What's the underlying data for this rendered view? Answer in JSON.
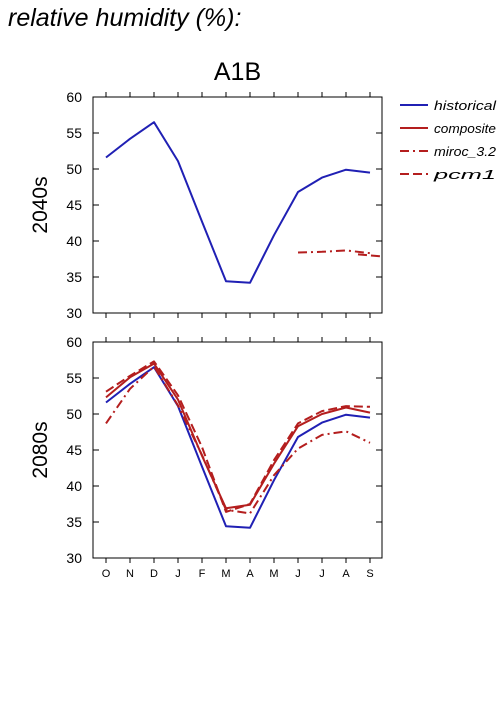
{
  "header": {
    "title": "relative humidity (%):"
  },
  "colors": {
    "historical": "#2020b4",
    "projection": "#b41e1e"
  },
  "chart_data": {
    "type": "line",
    "scenario": "A1B",
    "x": [
      "O",
      "N",
      "D",
      "J",
      "F",
      "M",
      "A",
      "M",
      "J",
      "J",
      "A",
      "S"
    ],
    "legend": {
      "placement": "right",
      "entries": [
        {
          "name": "historical",
          "color": "#2020b4",
          "dash": "solid"
        },
        {
          "name": "composite",
          "color": "#b41e1e",
          "dash": "solid"
        },
        {
          "name": "miroc_3.2",
          "color": "#b41e1e",
          "dash": "dash-dot"
        },
        {
          "name": "pcm1",
          "color": "#b41e1e",
          "dash": "dash"
        }
      ]
    },
    "panels": [
      {
        "label": "2040s",
        "ylim": [
          30,
          60
        ],
        "yticks": [
          30,
          35,
          40,
          45,
          50,
          55,
          60
        ],
        "grid": false,
        "series": [
          {
            "name": "historical",
            "values": [
              51.6,
              54.2,
              56.5,
              51.1,
              42.7,
              34.4,
              34.2,
              40.8,
              46.8,
              48.8,
              49.9,
              49.5
            ]
          },
          {
            "name": "miroc_3.2",
            "values": [
              null,
              null,
              null,
              null,
              null,
              null,
              null,
              null,
              38.4,
              38.5,
              38.7,
              38.3
            ]
          },
          {
            "name": "pcm1",
            "values": [
              null,
              null,
              null,
              null,
              null,
              null,
              null,
              null,
              null,
              null,
              null,
              38.0
            ]
          }
        ]
      },
      {
        "label": "2080s",
        "ylim": [
          30,
          60
        ],
        "yticks": [
          30,
          35,
          40,
          45,
          50,
          55,
          60
        ],
        "grid": false,
        "series": [
          {
            "name": "historical",
            "values": [
              51.6,
              54.2,
              56.5,
              51.1,
              42.7,
              34.4,
              34.2,
              40.8,
              46.8,
              48.8,
              49.9,
              49.5
            ]
          },
          {
            "name": "composite",
            "values": [
              52.3,
              55.1,
              57.0,
              52.0,
              44.2,
              36.9,
              37.4,
              43.1,
              48.3,
              50.0,
              50.9,
              50.2
            ]
          },
          {
            "name": "miroc_3.2",
            "values": [
              48.7,
              53.5,
              56.6,
              51.2,
              44.3,
              36.7,
              36.2,
              41.5,
              45.2,
              47.1,
              47.6,
              46.0
            ]
          },
          {
            "name": "pcm1",
            "values": [
              53.1,
              55.3,
              57.3,
              52.6,
              45.4,
              36.4,
              37.5,
              43.6,
              48.7,
              50.4,
              51.1,
              51.0
            ]
          }
        ]
      }
    ]
  }
}
